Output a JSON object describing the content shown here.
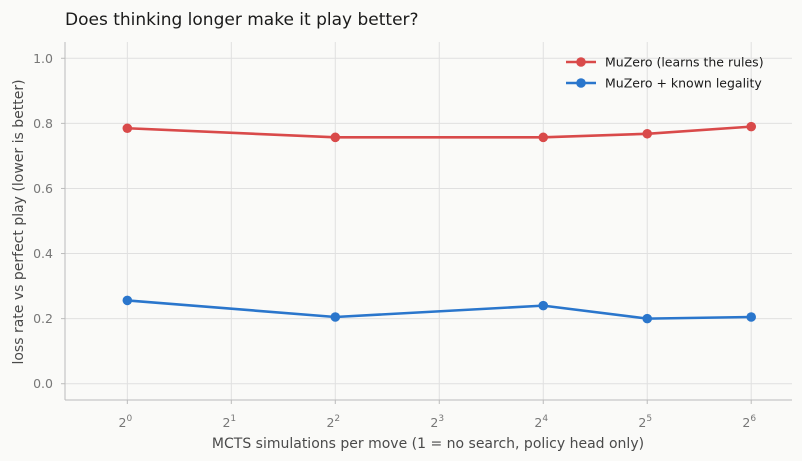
{
  "chart_data": {
    "type": "line",
    "title": "Does thinking longer make it play better?",
    "xlabel": "MCTS simulations per move (1 = no search, policy head only)",
    "ylabel": "loss rate vs perfect play (lower is better)",
    "x_scale": "log2",
    "x_ticks": [
      {
        "base": "2",
        "exp": "0"
      },
      {
        "base": "2",
        "exp": "1"
      },
      {
        "base": "2",
        "exp": "2"
      },
      {
        "base": "2",
        "exp": "3"
      },
      {
        "base": "2",
        "exp": "4"
      },
      {
        "base": "2",
        "exp": "5"
      },
      {
        "base": "2",
        "exp": "6"
      }
    ],
    "y_ticks": [
      "0.0",
      "0.2",
      "0.4",
      "0.6",
      "0.8",
      "1.0"
    ],
    "xlim": [
      0.66,
      84
    ],
    "ylim": [
      -0.05,
      1.05
    ],
    "grid": true,
    "legend_position": "top-right",
    "x": [
      1,
      4,
      16,
      32,
      64
    ],
    "series": [
      {
        "name": "MuZero (learns the rules)",
        "color": "#d94a4a",
        "values": [
          0.785,
          0.757,
          0.757,
          0.768,
          0.79
        ]
      },
      {
        "name": "MuZero + known legality",
        "color": "#2a76cc",
        "values": [
          0.256,
          0.205,
          0.24,
          0.2,
          0.205
        ]
      }
    ]
  }
}
